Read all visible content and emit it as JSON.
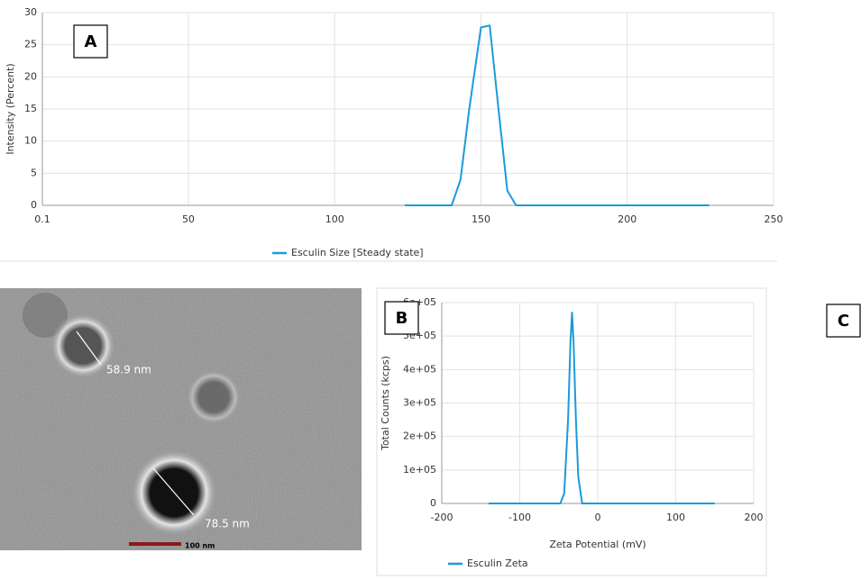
{
  "chart_data": [
    {
      "type": "line",
      "y_label": "Intensity (Percent)",
      "xlim": [
        0.1,
        250
      ],
      "xticks": [
        0.1,
        50,
        100,
        150,
        200,
        250
      ],
      "ylim": [
        0,
        30
      ],
      "yticks": [
        0,
        5,
        10,
        15,
        20,
        25,
        30
      ],
      "grid": true,
      "legend": "bottom",
      "series": [
        {
          "name": "Esculin Size [Steady state]",
          "color": "#1a9bdb",
          "x": [
            124,
            140,
            143,
            146,
            150,
            153,
            156,
            159,
            162,
            228
          ],
          "values": [
            0,
            0,
            4,
            15,
            27.7,
            28,
            15,
            2.3,
            0,
            0
          ]
        }
      ]
    },
    {
      "type": "line",
      "y_label": "Total Counts (kcps)",
      "x_label": "Zeta Potential (mV)",
      "xlim": [
        -200,
        200
      ],
      "xticks": [
        -200,
        -100,
        0,
        100,
        200
      ],
      "ylim": [
        0,
        600000
      ],
      "yticks": [
        0,
        {
          "value": 100000,
          "label": "1e+05"
        },
        {
          "value": 200000,
          "label": "2e+05"
        },
        {
          "value": 300000,
          "label": "3e+05"
        },
        {
          "value": 400000,
          "label": "4e+05"
        },
        {
          "value": 500000,
          "label": "5e+05"
        },
        {
          "value": 600000,
          "label": "6e+05"
        }
      ],
      "grid": true,
      "legend": "bottom",
      "series": [
        {
          "name": "Esculin Zeta",
          "color": "#1a9bdb",
          "x": [
            -140,
            -48,
            -43,
            -38,
            -35,
            -33,
            -31,
            -28,
            -25,
            -20,
            150
          ],
          "values": [
            0,
            0,
            30000,
            250000,
            480000,
            570000,
            480000,
            250000,
            80000,
            0,
            0
          ]
        }
      ]
    }
  ],
  "panel_labels": [
    "A",
    "B",
    "C"
  ],
  "image": {
    "labels": [
      "58.9 nm",
      "78.5 nm"
    ],
    "scale_bar": "100 nm"
  }
}
